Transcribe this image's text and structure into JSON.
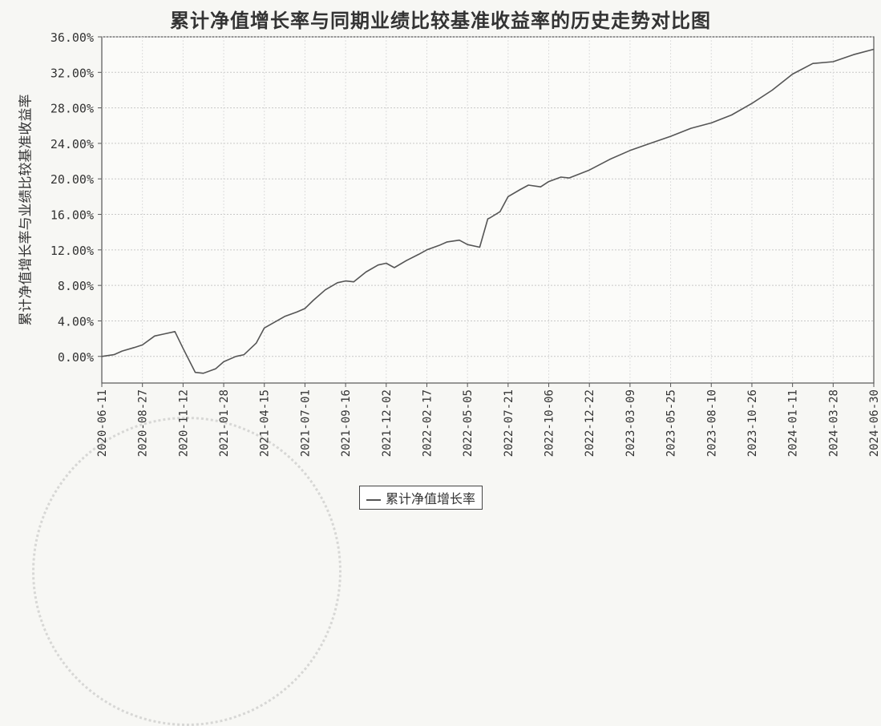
{
  "chart_data": {
    "type": "line",
    "title": "累计净值增长率与同期业绩比较基准收益率的历史走势对比图",
    "ylabel": "累计净值增长率与业绩比较基准收益率",
    "xlabel": "",
    "ylim": [
      -3,
      36
    ],
    "y_ticks": [
      "36.00%",
      "32.00%",
      "28.00%",
      "24.00%",
      "20.00%",
      "16.00%",
      "12.00%",
      "8.00%",
      "4.00%",
      "0.00%"
    ],
    "y_tick_values": [
      36,
      32,
      28,
      24,
      20,
      16,
      12,
      8,
      4,
      0
    ],
    "x_ticks": [
      "2020-06-11",
      "2020-08-27",
      "2020-11-12",
      "2021-01-28",
      "2021-04-15",
      "2021-07-01",
      "2021-09-16",
      "2021-12-02",
      "2022-02-17",
      "2022-05-05",
      "2022-07-21",
      "2022-10-06",
      "2022-12-22",
      "2023-03-09",
      "2023-05-25",
      "2023-08-10",
      "2023-10-26",
      "2024-01-11",
      "2024-03-28",
      "2024-06-30"
    ],
    "grid": true,
    "legend_position": "bottom",
    "series": [
      {
        "name": "累计净值增长率",
        "color": "#555555",
        "x": [
          0,
          0.3,
          0.5,
          0.8,
          1.0,
          1.3,
          1.5,
          1.8,
          2.0,
          2.3,
          2.5,
          2.8,
          3.0,
          3.3,
          3.5,
          3.8,
          4.0,
          4.5,
          4.8,
          5.0,
          5.2,
          5.5,
          5.8,
          6.0,
          6.2,
          6.5,
          6.8,
          7.0,
          7.2,
          7.5,
          7.8,
          8.0,
          8.3,
          8.5,
          8.8,
          9.0,
          9.3,
          9.5,
          9.55,
          9.8,
          10.0,
          10.3,
          10.5,
          10.8,
          11.0,
          11.3,
          11.5,
          12.0,
          12.5,
          13.0,
          13.5,
          14.0,
          14.5,
          15.0,
          15.5,
          16.0,
          16.5,
          17.0,
          17.5,
          18.0,
          18.5,
          19.0
        ],
        "values": [
          0.0,
          0.2,
          0.6,
          1.0,
          1.3,
          2.3,
          2.5,
          2.8,
          0.9,
          -1.8,
          -1.9,
          -1.4,
          -0.6,
          0.0,
          0.2,
          1.5,
          3.2,
          4.5,
          5.0,
          5.4,
          6.3,
          7.5,
          8.3,
          8.5,
          8.4,
          9.5,
          10.3,
          10.5,
          10.0,
          10.8,
          11.5,
          12.0,
          12.5,
          12.9,
          13.1,
          12.6,
          12.3,
          15.5,
          15.6,
          16.3,
          18.0,
          18.8,
          19.3,
          19.1,
          19.7,
          20.2,
          20.1,
          21.0,
          22.2,
          23.2,
          24.0,
          24.8,
          25.7,
          26.3,
          27.2,
          28.5,
          30.0,
          31.8,
          33.0,
          33.2,
          34.0,
          34.6
        ]
      }
    ]
  }
}
